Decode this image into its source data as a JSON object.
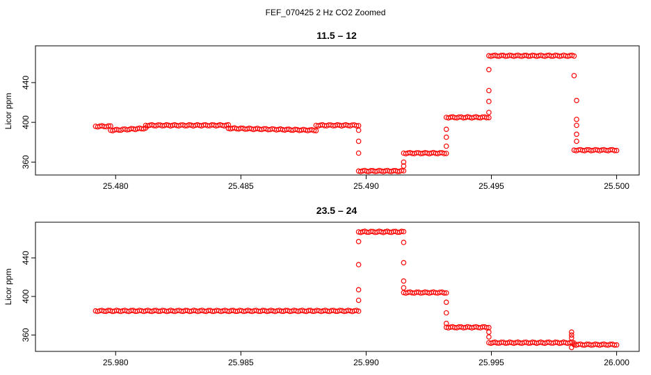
{
  "suptitle": "FEF_070425  2 Hz CO2 Zoomed",
  "colors": {
    "points": "#ff0000",
    "axis": "#000000",
    "background": "#ffffff"
  },
  "chart_data": [
    {
      "type": "scatter",
      "title": "11.5 – 12",
      "xlabel": "",
      "ylabel": "Licor ppm",
      "xlim": [
        25.4768,
        25.5009
      ],
      "ylim": [
        347,
        477
      ],
      "xticks": [
        25.48,
        25.485,
        25.49,
        25.495,
        25.5
      ],
      "xtick_labels": [
        "25.480",
        "25.485",
        "25.490",
        "25.495",
        "25.500"
      ],
      "yticks": [
        360,
        400,
        440
      ],
      "ytick_labels": [
        "360",
        "400",
        "440"
      ],
      "grid": false,
      "marker": "open-circle",
      "series": [
        {
          "segments": [
            {
              "x": [
                25.4792,
                25.4798
              ],
              "y": [
                396,
                396
              ]
            },
            {
              "x": [
                25.4798,
                25.4812
              ],
              "y": [
                392,
                394
              ]
            },
            {
              "x": [
                25.4812,
                25.4845
              ],
              "y": [
                397,
                397
              ]
            },
            {
              "x": [
                25.4845,
                25.488
              ],
              "y": [
                394,
                392
              ]
            },
            {
              "x": [
                25.488,
                25.4897
              ],
              "y": [
                397,
                397
              ]
            },
            {
              "x": [
                25.4897,
                25.4915
              ],
              "y": [
                351,
                351
              ]
            },
            {
              "x": [
                25.4915,
                25.4932
              ],
              "y": [
                369,
                369
              ]
            },
            {
              "x": [
                25.4932,
                25.4949
              ],
              "y": [
                405,
                405
              ]
            },
            {
              "x": [
                25.4949,
                25.4983
              ],
              "y": [
                467,
                467
              ]
            },
            {
              "x": [
                25.4983,
                25.5
              ],
              "y": [
                372,
                372
              ]
            }
          ],
          "transitions": [
            {
              "x": [
                25.4897,
                25.4897,
                25.4897
              ],
              "y": [
                392,
                381,
                369
              ]
            },
            {
              "x": [
                25.4915,
                25.4915
              ],
              "y": [
                356,
                360
              ]
            },
            {
              "x": [
                25.4932,
                25.4932,
                25.4932
              ],
              "y": [
                376,
                385,
                393
              ]
            },
            {
              "x": [
                25.4949,
                25.4949,
                25.4949,
                25.4949
              ],
              "y": [
                410,
                421,
                432,
                453
              ]
            },
            {
              "x": [
                25.4983,
                25.4984,
                25.4984,
                25.4984,
                25.4984,
                25.4984
              ],
              "y": [
                447,
                422,
                403,
                397,
                388,
                381
              ]
            }
          ]
        }
      ]
    },
    {
      "type": "scatter",
      "title": "23.5 – 24",
      "xlabel": "",
      "ylabel": "Licor ppm",
      "xlim": [
        25.9768,
        26.0009
      ],
      "ylim": [
        343,
        477
      ],
      "xticks": [
        25.98,
        25.985,
        25.99,
        25.995,
        26.0
      ],
      "xtick_labels": [
        "25.980",
        "25.985",
        "25.990",
        "25.995",
        "26.000"
      ],
      "yticks": [
        360,
        400,
        440
      ],
      "ytick_labels": [
        "360",
        "400",
        "440"
      ],
      "grid": false,
      "marker": "open-circle",
      "series": [
        {
          "segments": [
            {
              "x": [
                25.9792,
                25.9897
              ],
              "y": [
                385,
                385
              ]
            },
            {
              "x": [
                25.9897,
                25.9915
              ],
              "y": [
                467,
                467
              ]
            },
            {
              "x": [
                25.9915,
                25.9932
              ],
              "y": [
                404,
                404
              ]
            },
            {
              "x": [
                25.9932,
                25.9949
              ],
              "y": [
                368,
                368
              ]
            },
            {
              "x": [
                25.9949,
                25.9983
              ],
              "y": [
                352,
                352
              ]
            },
            {
              "x": [
                25.9983,
                26.0
              ],
              "y": [
                350,
                350
              ]
            }
          ],
          "transitions": [
            {
              "x": [
                25.9897,
                25.9897,
                25.9897,
                25.9897
              ],
              "y": [
                396,
                407,
                433,
                457
              ]
            },
            {
              "x": [
                25.9915,
                25.9915,
                25.9915,
                25.9915
              ],
              "y": [
                456,
                435,
                416,
                409
              ]
            },
            {
              "x": [
                25.9932,
                25.9932,
                25.9932
              ],
              "y": [
                394,
                383,
                372
              ]
            },
            {
              "x": [
                25.9949,
                25.9949
              ],
              "y": [
                363,
                358
              ]
            },
            {
              "x": [
                25.9982,
                25.9982,
                25.9982,
                25.9982
              ],
              "y": [
                363,
                360,
                357,
                347
              ]
            }
          ]
        }
      ]
    }
  ]
}
